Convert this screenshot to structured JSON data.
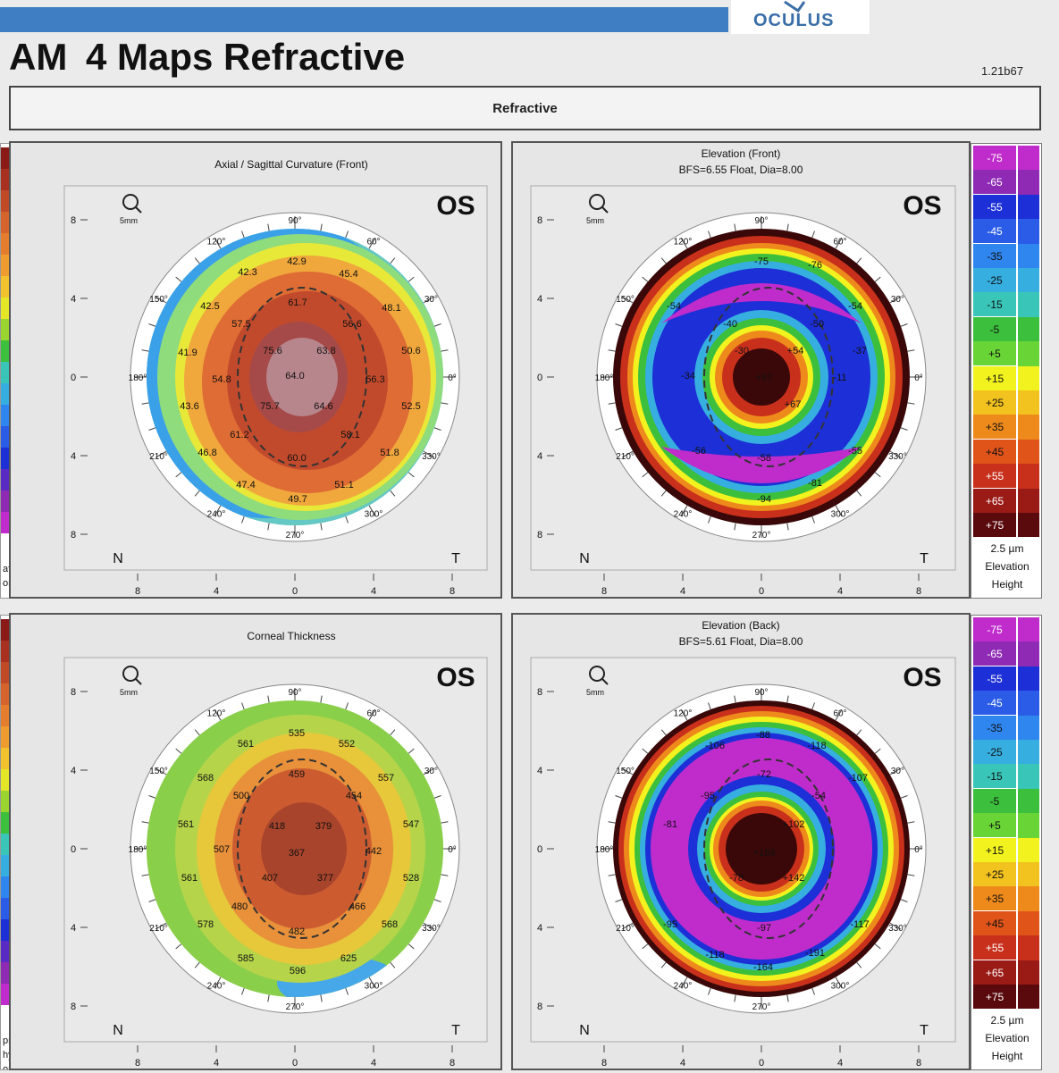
{
  "header": {
    "title_prefix": "AM",
    "title": "4 Maps Refractive",
    "version": "1.21b67",
    "logo": "OCULUS"
  },
  "tab": {
    "label": "Refractive"
  },
  "common": {
    "eye": "OS",
    "magnifier_label": "5mm",
    "nasal": "N",
    "temporal": "T",
    "angle_labels": [
      "0°",
      "30°",
      "60°",
      "90°",
      "120°",
      "150°",
      "180°",
      "210°",
      "240°",
      "270°",
      "300°",
      "330°"
    ],
    "axis_labels": [
      "8",
      "4",
      "0",
      "4",
      "8"
    ]
  },
  "left_scale": {
    "caption": [
      "ature",
      "on",
      "pm",
      "hy.",
      "on"
    ]
  },
  "maps": [
    {
      "id": "axial",
      "title": [
        "Axial / Sagittal Curvature (Front)"
      ],
      "map_type": "curvature",
      "values": [
        {
          "t": "42.9"
        },
        {
          "t": "42.3"
        },
        {
          "t": "45.4"
        },
        {
          "t": "42.5"
        },
        {
          "t": "48.1"
        },
        {
          "t": "61.7"
        },
        {
          "t": "57.5"
        },
        {
          "t": "56.6"
        },
        {
          "t": "75.6"
        },
        {
          "t": "63.8"
        },
        {
          "t": "50.6"
        },
        {
          "t": "41.9"
        },
        {
          "t": "64.0"
        },
        {
          "t": "54.8"
        },
        {
          "t": "56.3"
        },
        {
          "t": "75.7"
        },
        {
          "t": "64.6"
        },
        {
          "t": "43.6"
        },
        {
          "t": "52.5"
        },
        {
          "t": "61.2"
        },
        {
          "t": "58.1"
        },
        {
          "t": "46.8"
        },
        {
          "t": "60.0"
        },
        {
          "t": "51.8"
        },
        {
          "t": "47.4"
        },
        {
          "t": "51.1"
        },
        {
          "t": "49.7"
        }
      ]
    },
    {
      "id": "elev-front",
      "title": [
        "Elevation (Front)",
        "BFS=6.55 Float, Dia=8.00"
      ],
      "map_type": "elevation_front",
      "values": [
        {
          "t": "-75"
        },
        {
          "t": "-76"
        },
        {
          "t": "-54"
        },
        {
          "t": "-54"
        },
        {
          "t": "-40"
        },
        {
          "t": "-50"
        },
        {
          "t": "-37"
        },
        {
          "t": "-30"
        },
        {
          "t": "+54"
        },
        {
          "t": "-34"
        },
        {
          "t": "+97"
        },
        {
          "t": "-11"
        },
        {
          "t": "+67"
        },
        {
          "t": "-56"
        },
        {
          "t": "-55"
        },
        {
          "t": "-58"
        },
        {
          "t": "-94"
        },
        {
          "t": "-81"
        }
      ]
    },
    {
      "id": "thickness",
      "title": [
        "Corneal Thickness"
      ],
      "map_type": "thickness",
      "values": [
        {
          "t": "535"
        },
        {
          "t": "561"
        },
        {
          "t": "552"
        },
        {
          "t": "568"
        },
        {
          "t": "459"
        },
        {
          "t": "557"
        },
        {
          "t": "500"
        },
        {
          "t": "454"
        },
        {
          "t": "561"
        },
        {
          "t": "418"
        },
        {
          "t": "379"
        },
        {
          "t": "547"
        },
        {
          "t": "507"
        },
        {
          "t": "367"
        },
        {
          "t": "442"
        },
        {
          "t": "561"
        },
        {
          "t": "407"
        },
        {
          "t": "377"
        },
        {
          "t": "528"
        },
        {
          "t": "480"
        },
        {
          "t": "466"
        },
        {
          "t": "578"
        },
        {
          "t": "482"
        },
        {
          "t": "568"
        },
        {
          "t": "585"
        },
        {
          "t": "596"
        },
        {
          "t": "625"
        }
      ]
    },
    {
      "id": "elev-back",
      "title": [
        "Elevation (Back)",
        "BFS=5.61 Float, Dia=8.00"
      ],
      "map_type": "elevation_back",
      "values": [
        {
          "t": "-88"
        },
        {
          "t": "-106"
        },
        {
          "t": "-118"
        },
        {
          "t": "-72"
        },
        {
          "t": "-107"
        },
        {
          "t": "-95"
        },
        {
          "t": "-54"
        },
        {
          "t": "+102"
        },
        {
          "t": "-81"
        },
        {
          "t": "+169"
        },
        {
          "t": "-78"
        },
        {
          "t": "+142"
        },
        {
          "t": "-95"
        },
        {
          "t": "-117"
        },
        {
          "t": "-97"
        },
        {
          "t": "-118"
        },
        {
          "t": "-164"
        },
        {
          "t": "-191"
        }
      ]
    }
  ],
  "elevation_scale": {
    "labels": [
      "-75",
      "-65",
      "-55",
      "-45",
      "-35",
      "-25",
      "-15",
      "-5",
      "+5",
      "+15",
      "+25",
      "+35",
      "+45",
      "+55",
      "+65",
      "+75"
    ],
    "colors": [
      "#c02ccc",
      "#8e2ab4",
      "#1d2fd6",
      "#2a5ce8",
      "#2f86ee",
      "#36aee0",
      "#39c6b8",
      "#3cbf3c",
      "#69d436",
      "#f2f21e",
      "#f2c21e",
      "#ee8a1c",
      "#e0541a",
      "#c8301c",
      "#9a1a16",
      "#5a0a0c"
    ],
    "caption": [
      "2.5 µm",
      "Elevation",
      "Height"
    ]
  },
  "colors": {
    "header_blue": "#3f7ec2",
    "logo_blue": "#3a6ea8",
    "panel_border": "#555555",
    "map_bg": "#d9d9d9"
  }
}
